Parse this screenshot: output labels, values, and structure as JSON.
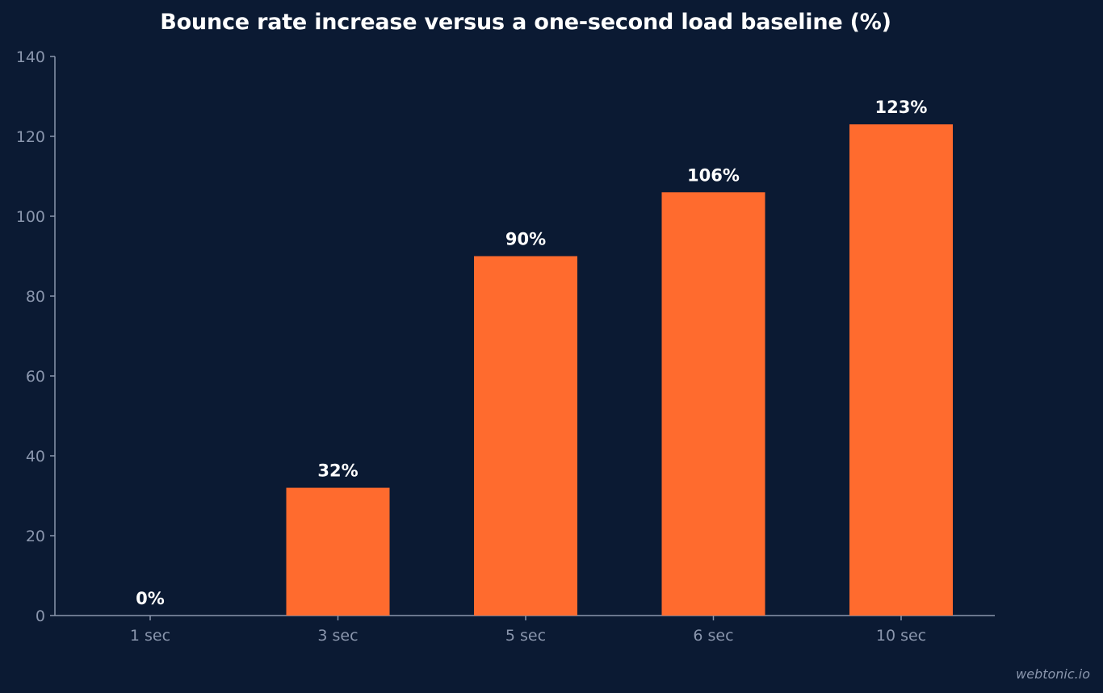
{
  "chart_data": {
    "type": "bar",
    "title": "Bounce rate increase versus a one-second load baseline (%)",
    "categories": [
      "1 sec",
      "3 sec",
      "5 sec",
      "6 sec",
      "10 sec"
    ],
    "values": [
      0,
      32,
      90,
      106,
      123
    ],
    "data_labels": [
      "0%",
      "32%",
      "90%",
      "106%",
      "123%"
    ],
    "xlabel": "",
    "ylabel": "",
    "ylim": [
      0,
      140
    ],
    "yticks": [
      "0",
      "20",
      "40",
      "60",
      "80",
      "100",
      "120",
      "140"
    ],
    "grid": false,
    "legend": "none",
    "colors": {
      "bar": "#ff6b2e",
      "background": "#0b1a33",
      "axis": "#8a96ad",
      "tick_label": "#8a96ad",
      "data_label": "#ffffff"
    }
  },
  "footer": {
    "credit": "webtonic.io"
  }
}
